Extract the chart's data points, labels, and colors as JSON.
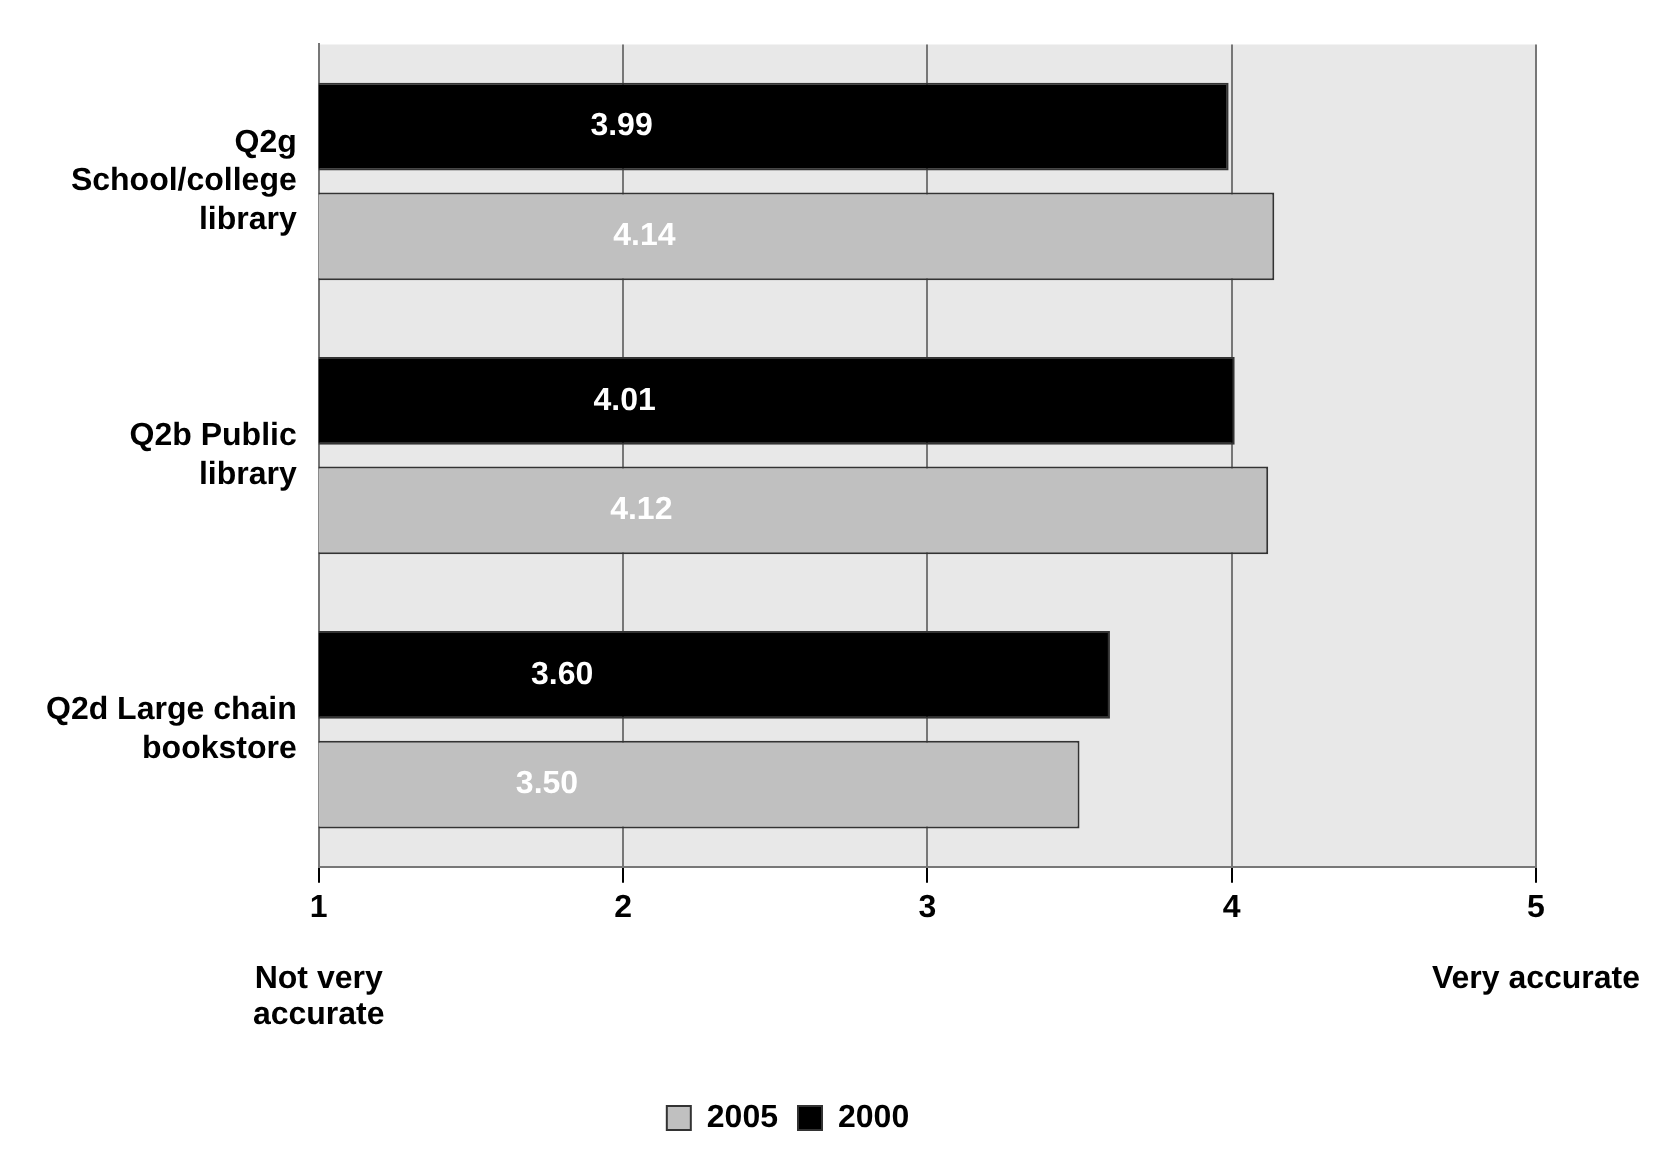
{
  "chart_data": {
    "type": "bar",
    "orientation": "horizontal",
    "categories": [
      "Q2g School/college library",
      "Q2b Public library",
      "Q2d Large chain bookstore"
    ],
    "series": [
      {
        "name": "2005",
        "color": "#c0c0c0",
        "values": [
          4.14,
          4.12,
          3.5
        ],
        "value_labels": [
          "4.14",
          "4.12",
          "3.50"
        ]
      },
      {
        "name": "2000",
        "color": "#000000",
        "values": [
          3.99,
          4.01,
          3.6
        ],
        "value_labels": [
          "3.99",
          "4.01",
          "3.60"
        ]
      }
    ],
    "xlim": [
      1,
      5
    ],
    "xticks": [
      1,
      2,
      3,
      4,
      5
    ],
    "grid": "x",
    "legend": "bottom",
    "annotations": [
      "Not very accurate",
      "Very accurate"
    ]
  }
}
